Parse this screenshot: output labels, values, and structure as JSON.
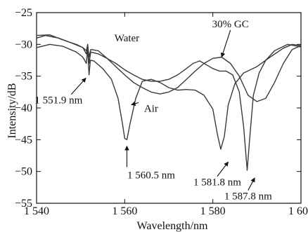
{
  "chart_data": {
    "type": "line",
    "title": "",
    "xlabel": "Wavelength/nm",
    "ylabel": "Intensity/dB",
    "xlim": [
      1540,
      1600
    ],
    "ylim": [
      -55,
      -25
    ],
    "xticks": [
      1540,
      1560,
      1580,
      1600
    ],
    "xtick_labels": [
      "1 540",
      "1 560",
      "1 580",
      "1 600"
    ],
    "yticks": [
      -55,
      -50,
      -45,
      -40,
      -35,
      -30,
      -25
    ],
    "ytick_labels": [
      "−55",
      "−50",
      "−45",
      "−40",
      "−35",
      "−30",
      "−25"
    ],
    "grid": false,
    "legend": "none",
    "series": [
      {
        "name": "Air",
        "points": [
          [
            1540,
            -30.5
          ],
          [
            1543,
            -30.0
          ],
          [
            1546,
            -30.3
          ],
          [
            1549,
            -31.2
          ],
          [
            1550.5,
            -32.0
          ],
          [
            1551.3,
            -33.0
          ],
          [
            1551.6,
            -30.6
          ],
          [
            1551.9,
            -34.8
          ],
          [
            1552.2,
            -32.5
          ],
          [
            1553,
            -32.6
          ],
          [
            1555,
            -33.8
          ],
          [
            1557,
            -35.5
          ],
          [
            1558.5,
            -38.5
          ],
          [
            1559.5,
            -42.5
          ],
          [
            1560,
            -44.8
          ],
          [
            1560.5,
            -45.0
          ],
          [
            1561.2,
            -42.5
          ],
          [
            1562.5,
            -38.5
          ],
          [
            1564,
            -35.8
          ],
          [
            1566,
            -35.5
          ],
          [
            1568,
            -36.0
          ],
          [
            1570,
            -36.8
          ],
          [
            1572,
            -37.2
          ],
          [
            1574,
            -37.1
          ],
          [
            1576,
            -37.2
          ],
          [
            1578,
            -38.0
          ],
          [
            1580,
            -40.2
          ],
          [
            1581,
            -44.0
          ],
          [
            1581.8,
            -46.5
          ],
          [
            1582.6,
            -44.5
          ],
          [
            1583.5,
            -39.5
          ],
          [
            1585,
            -36.2
          ],
          [
            1587,
            -34.5
          ],
          [
            1590,
            -33.5
          ],
          [
            1593,
            -32.0
          ],
          [
            1596,
            -30.6
          ],
          [
            1598,
            -30.0
          ],
          [
            1600,
            -30.2
          ]
        ]
      },
      {
        "name": "Water",
        "points": [
          [
            1540,
            -29.0
          ],
          [
            1542,
            -28.6
          ],
          [
            1545,
            -29.0
          ],
          [
            1548,
            -29.8
          ],
          [
            1550.5,
            -30.5
          ],
          [
            1551.3,
            -31.5
          ],
          [
            1551.6,
            -30.3
          ],
          [
            1551.9,
            -33.0
          ],
          [
            1552.3,
            -31.2
          ],
          [
            1554,
            -31.5
          ],
          [
            1556,
            -32.2
          ],
          [
            1558,
            -33.0
          ],
          [
            1560,
            -34.0
          ],
          [
            1562,
            -34.8
          ],
          [
            1564,
            -35.5
          ],
          [
            1566,
            -35.8
          ],
          [
            1568,
            -35.8
          ],
          [
            1570,
            -35.5
          ],
          [
            1572,
            -34.8
          ],
          [
            1574,
            -33.8
          ],
          [
            1575.5,
            -33.0
          ],
          [
            1577,
            -32.6
          ],
          [
            1578.5,
            -33.2
          ],
          [
            1580,
            -33.8
          ],
          [
            1581.5,
            -34.2
          ],
          [
            1583,
            -34.2
          ],
          [
            1584.5,
            -34.8
          ],
          [
            1586,
            -37.5
          ],
          [
            1587,
            -43.0
          ],
          [
            1587.8,
            -49.8
          ],
          [
            1588.4,
            -44.5
          ],
          [
            1589.2,
            -38.0
          ],
          [
            1590.5,
            -34.5
          ],
          [
            1592,
            -32.5
          ],
          [
            1594,
            -31.0
          ],
          [
            1597,
            -30.0
          ],
          [
            1600,
            -30.4
          ]
        ]
      },
      {
        "name": "30% GC",
        "points": [
          [
            1540,
            -28.6
          ],
          [
            1543,
            -28.5
          ],
          [
            1546,
            -29.3
          ],
          [
            1549,
            -30.0
          ],
          [
            1550.5,
            -30.5
          ],
          [
            1551.3,
            -31.0
          ],
          [
            1551.6,
            -30.0
          ],
          [
            1551.9,
            -32.0
          ],
          [
            1552.3,
            -30.8
          ],
          [
            1554,
            -31.0
          ],
          [
            1556,
            -32.2
          ],
          [
            1558,
            -33.5
          ],
          [
            1560,
            -34.8
          ],
          [
            1562,
            -36.0
          ],
          [
            1564,
            -36.8
          ],
          [
            1566,
            -37.5
          ],
          [
            1568,
            -37.8
          ],
          [
            1570,
            -37.5
          ],
          [
            1572,
            -36.8
          ],
          [
            1574,
            -35.5
          ],
          [
            1576,
            -34.2
          ],
          [
            1578,
            -33.0
          ],
          [
            1580,
            -32.2
          ],
          [
            1582,
            -32.0
          ],
          [
            1584,
            -33.0
          ],
          [
            1586,
            -35.0
          ],
          [
            1588,
            -38.0
          ],
          [
            1590,
            -39.0
          ],
          [
            1592,
            -38.5
          ],
          [
            1594,
            -36.0
          ],
          [
            1596,
            -33.0
          ],
          [
            1598,
            -30.8
          ],
          [
            1600,
            -30.2
          ]
        ]
      }
    ],
    "annotations": [
      {
        "text": "Water",
        "x": 1560.5,
        "y": -29.5,
        "arrow_to": null
      },
      {
        "text": "30% GC",
        "x": 1584,
        "y": -27.3,
        "arrow_to": [
          1582,
          -32.0
        ]
      },
      {
        "text": "Air",
        "x": 1566,
        "y": -40.6,
        "arrow_to": [
          1561.5,
          -39.5
        ]
      },
      {
        "text": "1 551.9 nm",
        "x": 1545,
        "y": -39.3,
        "arrow_to": [
          1551.2,
          -35.3
        ]
      },
      {
        "text": "1 560.5 nm",
        "x": 1566,
        "y": -51.1,
        "arrow_to": null
      },
      {
        "text": "1 581.8 nm",
        "x": 1581,
        "y": -52.2,
        "arrow_to": [
          1583.5,
          -48.5
        ]
      },
      {
        "text": "1 587.8 nm",
        "x": 1588,
        "y": -54.4,
        "arrow_to": [
          1589.5,
          -51.0
        ]
      }
    ]
  }
}
